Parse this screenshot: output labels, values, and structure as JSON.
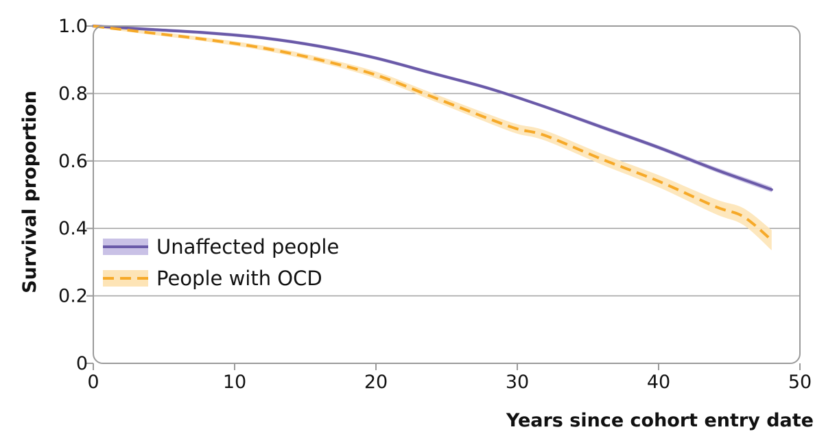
{
  "chart_data": {
    "type": "line",
    "xlabel": "Years since cohort entry date",
    "ylabel": "Survival proportion",
    "xlim": [
      0,
      50
    ],
    "ylim": [
      0,
      1.0
    ],
    "x_ticks": [
      "0",
      "10",
      "20",
      "30",
      "40",
      "50"
    ],
    "y_ticks": [
      "0",
      "0.2",
      "0.4",
      "0.6",
      "0.8",
      "1.0"
    ],
    "grid": "horizontal",
    "legend_position": "lower-left",
    "series": [
      {
        "name": "Unaffected people",
        "color": "#6a5aa8",
        "band_color": "#c9c1e6",
        "style": "solid",
        "x": [
          0,
          4,
          8,
          12,
          16,
          20,
          24,
          28,
          32,
          36,
          40,
          44,
          47,
          48
        ],
        "y": [
          1.0,
          0.99,
          0.98,
          0.965,
          0.94,
          0.905,
          0.86,
          0.815,
          0.76,
          0.7,
          0.64,
          0.575,
          0.53,
          0.515
        ],
        "band": [
          0.005,
          0.005,
          0.005,
          0.005,
          0.005,
          0.005,
          0.005,
          0.005,
          0.005,
          0.006,
          0.006,
          0.007,
          0.008,
          0.008
        ]
      },
      {
        "name": "People with OCD",
        "color": "#f6a928",
        "band_color": "#fde4b6",
        "style": "dashed",
        "x": [
          0,
          4,
          8,
          12,
          16,
          20,
          24,
          28,
          30,
          32,
          36,
          40,
          44,
          46,
          48
        ],
        "y": [
          1.0,
          0.98,
          0.96,
          0.935,
          0.9,
          0.855,
          0.79,
          0.725,
          0.695,
          0.675,
          0.605,
          0.54,
          0.465,
          0.435,
          0.365
        ],
        "band": [
          0.004,
          0.005,
          0.006,
          0.007,
          0.008,
          0.01,
          0.011,
          0.013,
          0.014,
          0.015,
          0.016,
          0.018,
          0.022,
          0.025,
          0.03
        ]
      }
    ]
  }
}
